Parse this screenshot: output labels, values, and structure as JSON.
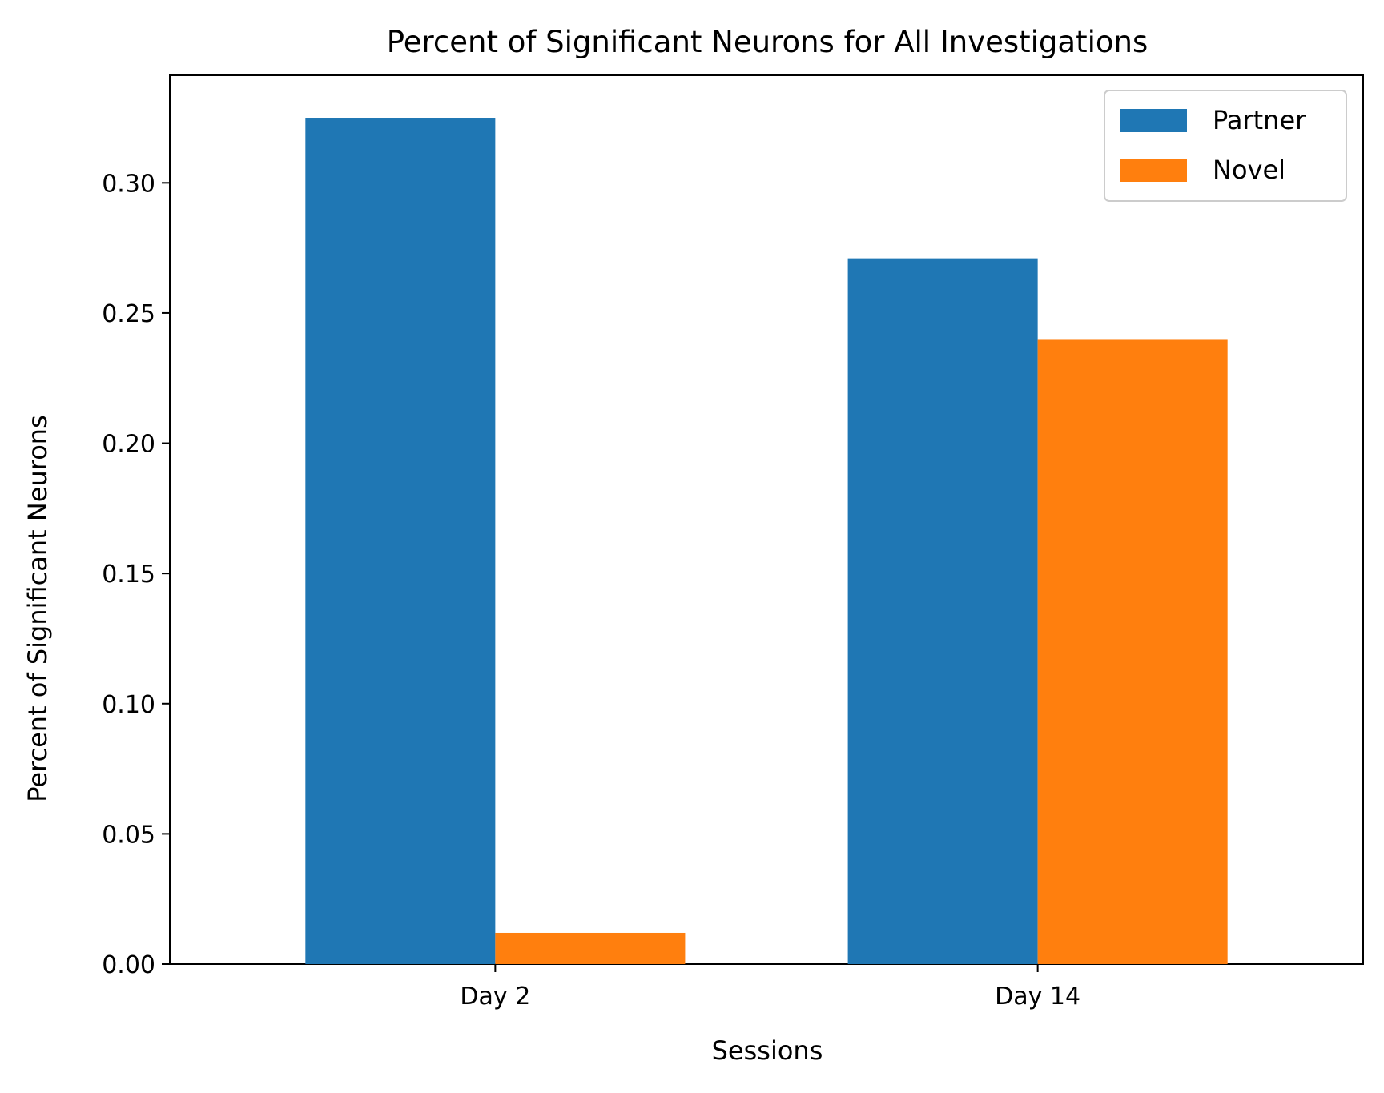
{
  "chart_data": {
    "type": "bar",
    "title": "Percent of Significant Neurons for All Investigations",
    "xlabel": "Sessions",
    "ylabel": "Percent of Significant Neurons",
    "categories": [
      "Day 2",
      "Day 14"
    ],
    "series": [
      {
        "name": "Partner",
        "color": "#1f77b4",
        "values": [
          0.325,
          0.271
        ]
      },
      {
        "name": "Novel",
        "color": "#ff7f0e",
        "values": [
          0.012,
          0.24
        ]
      }
    ],
    "ylim": [
      0,
      0.3413
    ],
    "yticks": [
      0.0,
      0.05,
      0.1,
      0.15,
      0.2,
      0.25,
      0.3
    ],
    "ytick_labels": [
      "0.00",
      "0.05",
      "0.10",
      "0.15",
      "0.20",
      "0.25",
      "0.30"
    ],
    "grid": false,
    "legend_position": "top-right"
  }
}
